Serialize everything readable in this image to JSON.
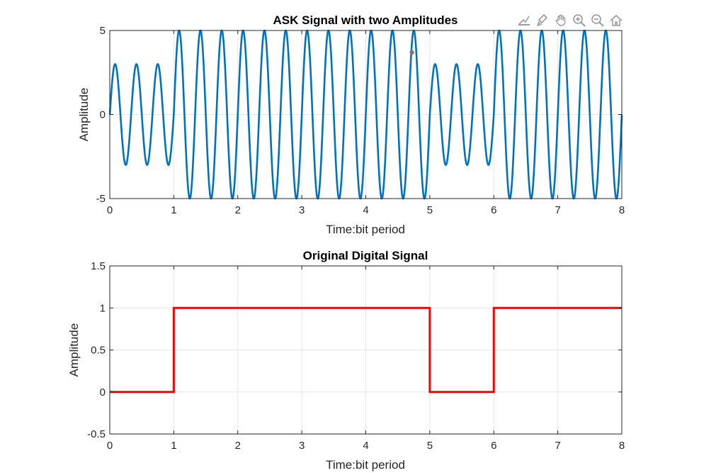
{
  "chart_data": [
    {
      "type": "line",
      "title": "ASK Signal with two Amplitudes",
      "xlabel": "Time:bit period",
      "ylabel": "Amplitude",
      "xlim": [
        0,
        8
      ],
      "ylim": [
        -5,
        5
      ],
      "xticks": [
        "0",
        "1",
        "2",
        "3",
        "4",
        "5",
        "6",
        "7",
        "8"
      ],
      "yticks": [
        "-5",
        "0",
        "5"
      ],
      "grid": true,
      "bits": [
        0,
        1,
        1,
        1,
        1,
        0,
        1,
        1
      ],
      "amplitudes": {
        "low": 3,
        "high": 5
      },
      "cycles_per_bit": 3,
      "series": [
        {
          "color": "#0072BD",
          "signal": "ask"
        }
      ],
      "datatip_point": {
        "x": 4.72,
        "y": 3.7
      }
    },
    {
      "type": "line",
      "title": "Original Digital Signal",
      "xlabel": "Time:bit period",
      "ylabel": "Amplitude",
      "xlim": [
        0,
        8
      ],
      "ylim": [
        -0.5,
        1.5
      ],
      "xticks": [
        "0",
        "1",
        "2",
        "3",
        "4",
        "5",
        "6",
        "7",
        "8"
      ],
      "yticks": [
        "-0.5",
        "0",
        "0.5",
        "1",
        "1.5"
      ],
      "grid": true,
      "series": [
        {
          "color": "#FF0000",
          "x": [
            0,
            1,
            1,
            5,
            5,
            6,
            6,
            8
          ],
          "y": [
            0,
            0,
            1,
            1,
            0,
            0,
            1,
            1
          ]
        }
      ]
    }
  ],
  "toolbar": {
    "icons": [
      "data-tip-icon",
      "brush-icon",
      "pan-hand-icon",
      "zoom-in-icon",
      "zoom-out-icon",
      "home-icon"
    ]
  }
}
